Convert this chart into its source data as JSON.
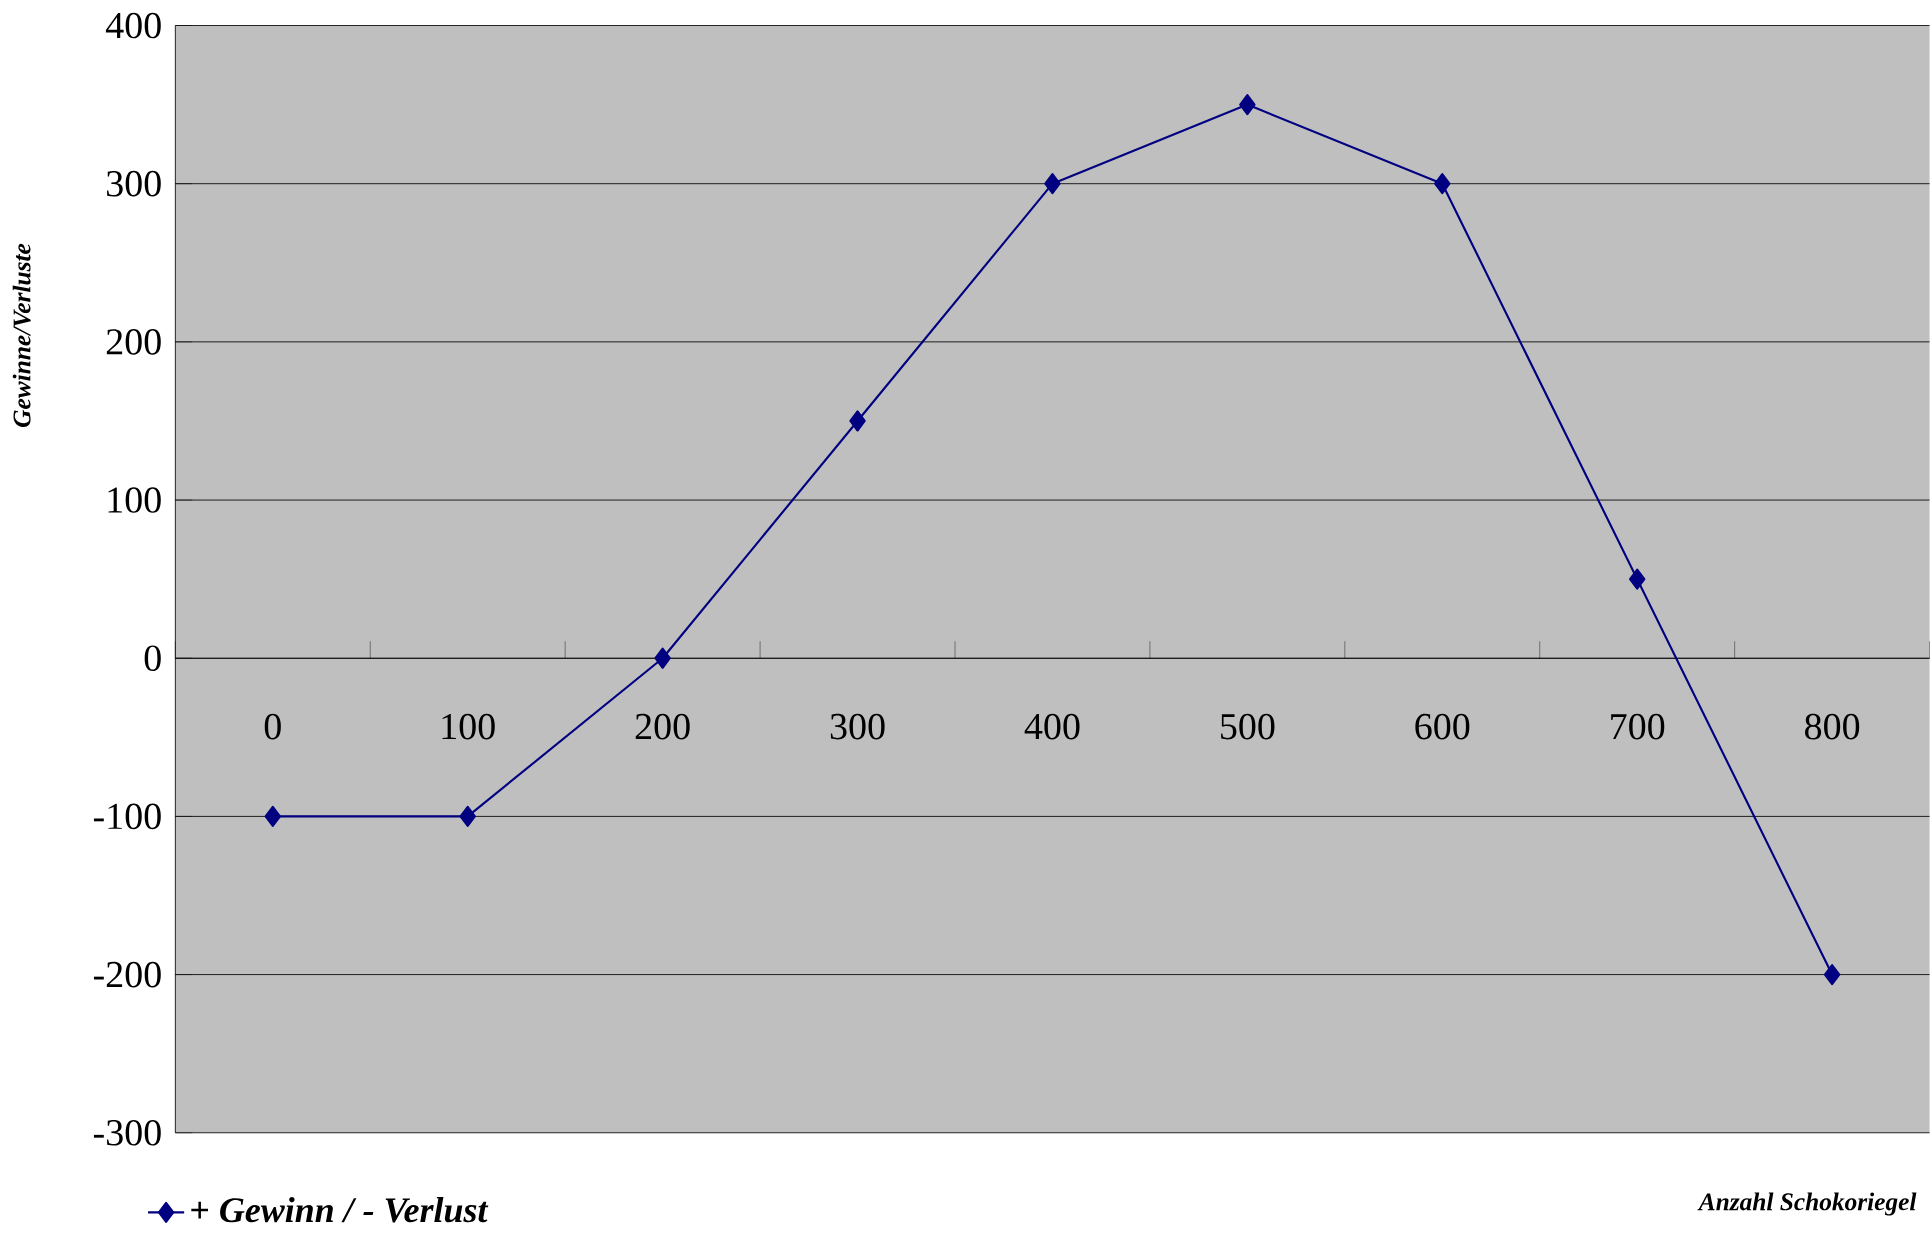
{
  "chart_data": {
    "type": "line",
    "xlabel": "Anzahl Schokoriegel",
    "ylabel": "Gewinne/Verluste",
    "categories": [
      "0",
      "100",
      "200",
      "300",
      "400",
      "500",
      "600",
      "700",
      "800"
    ],
    "series": [
      {
        "name": "+ *Gewinn / - Verlust*",
        "color": "#000080",
        "values": [
          -100,
          -100,
          0,
          150,
          300,
          350,
          300,
          50,
          -200
        ]
      }
    ],
    "ylim": [
      -300,
      400
    ],
    "yticks": [
      -300,
      -200,
      -100,
      0,
      100,
      200,
      300,
      400
    ],
    "grid": "y",
    "legend": "bottom left",
    "marker": "diamond",
    "line_style": "solid"
  }
}
